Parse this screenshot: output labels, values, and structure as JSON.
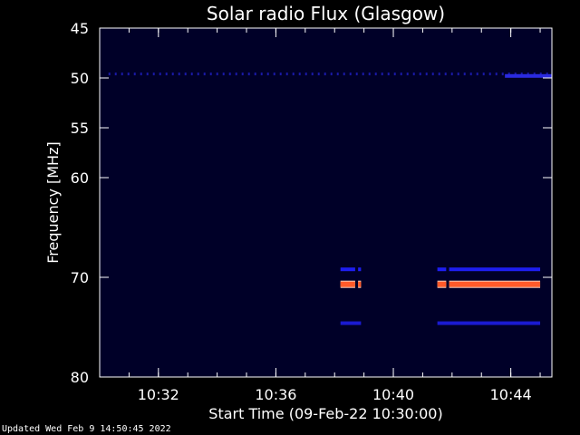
{
  "chart_data": {
    "type": "heatmap",
    "title": "Solar radio Flux (Glasgow)",
    "xlabel": "Start Time (09-Feb-22 10:30:00)",
    "ylabel": "Frequency [MHz]",
    "x_unit": "minutes past 10:30:00",
    "xlim": [
      0,
      15.4
    ],
    "ylim": [
      45,
      80
    ],
    "y_inverted": true,
    "x_ticks": [
      {
        "value": 2,
        "label": "10:32"
      },
      {
        "value": 6,
        "label": "10:36"
      },
      {
        "value": 10,
        "label": "10:40"
      },
      {
        "value": 14,
        "label": "10:44"
      }
    ],
    "y_ticks": [
      {
        "value": 45,
        "label": "45"
      },
      {
        "value": 50,
        "label": "50"
      },
      {
        "value": 55,
        "label": "55"
      },
      {
        "value": 60,
        "label": "60"
      },
      {
        "value": 70,
        "label": "70"
      },
      {
        "value": 80,
        "label": "80"
      }
    ],
    "background_color": "#000028",
    "bands": [
      {
        "t_start": 0.3,
        "t_end": 15.4,
        "freq": 49.6,
        "color": "#1a1aa8",
        "style": "dotted"
      },
      {
        "t_start": 13.8,
        "t_end": 15.4,
        "freq": 49.8,
        "color": "#2a2ae0",
        "style": "solid"
      },
      {
        "t_start": 8.2,
        "t_end": 8.7,
        "freq": 69.2,
        "color": "#1e1ef0",
        "style": "solid"
      },
      {
        "t_start": 8.8,
        "t_end": 8.9,
        "freq": 69.2,
        "color": "#1e1ef0",
        "style": "solid"
      },
      {
        "t_start": 8.2,
        "t_end": 8.7,
        "freq": 70.7,
        "color": "#ff5a2a",
        "style": "solid"
      },
      {
        "t_start": 8.8,
        "t_end": 8.9,
        "freq": 70.7,
        "color": "#ff5a2a",
        "style": "solid"
      },
      {
        "t_start": 8.2,
        "t_end": 8.9,
        "freq": 74.6,
        "color": "#1a1ad0",
        "style": "solid"
      },
      {
        "t_start": 11.5,
        "t_end": 11.8,
        "freq": 69.2,
        "color": "#1e1ef0",
        "style": "solid"
      },
      {
        "t_start": 11.9,
        "t_end": 15.0,
        "freq": 69.2,
        "color": "#1e1ef0",
        "style": "solid"
      },
      {
        "t_start": 11.5,
        "t_end": 11.8,
        "freq": 70.7,
        "color": "#ff5a2a",
        "style": "solid"
      },
      {
        "t_start": 11.9,
        "t_end": 15.0,
        "freq": 70.7,
        "color": "#ff5a2a",
        "style": "solid"
      },
      {
        "t_start": 11.5,
        "t_end": 15.0,
        "freq": 74.6,
        "color": "#1a1ad0",
        "style": "solid"
      }
    ],
    "grid": false
  },
  "footer": "Updated Wed Feb  9 14:50:45 2022"
}
